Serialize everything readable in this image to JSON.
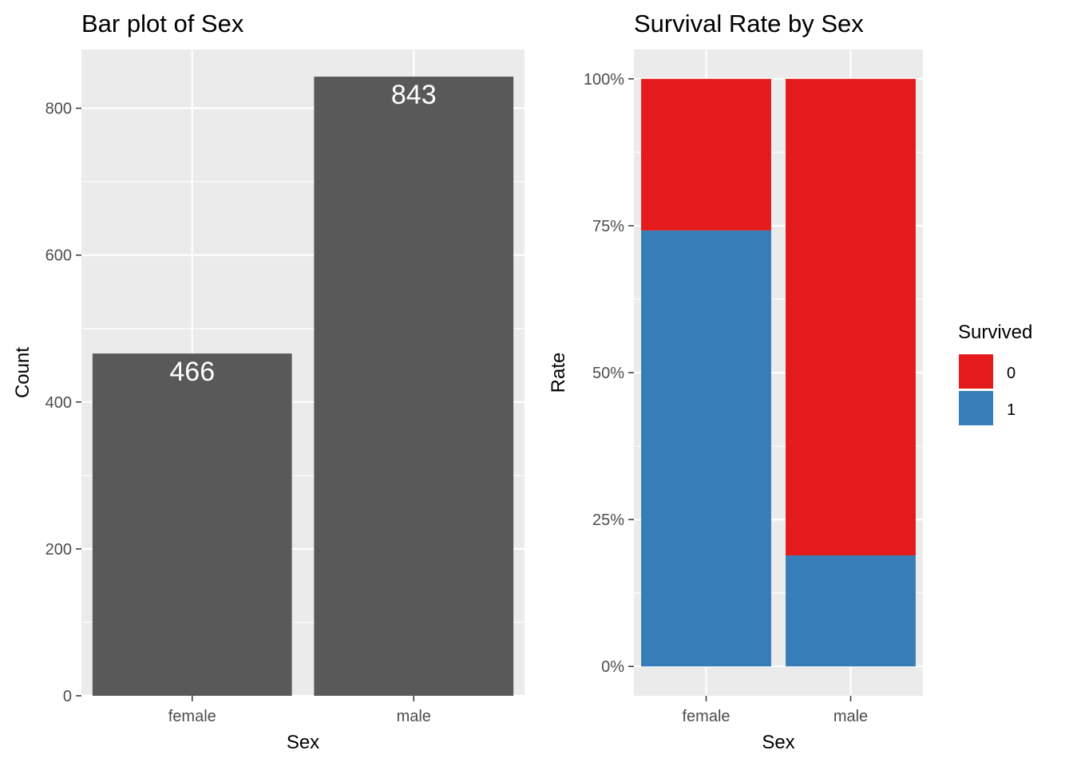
{
  "chart_data": [
    {
      "type": "bar",
      "title": "Bar plot of Sex",
      "xlabel": "Sex",
      "ylabel": "Count",
      "categories": [
        "female",
        "male"
      ],
      "values": [
        466,
        843
      ],
      "data_labels": [
        "466",
        "843"
      ],
      "ylim": [
        0,
        880
      ],
      "yticks": [
        0,
        200,
        400,
        600,
        800
      ],
      "ytick_labels": [
        "0",
        "200",
        "400",
        "600",
        "800"
      ],
      "grid": true,
      "colors": {
        "bar": "#595959",
        "panel": "#ebebeb",
        "grid": "#ffffff",
        "label": "#ffffff"
      }
    },
    {
      "type": "bar",
      "stacked": true,
      "normalized": true,
      "title": "Survival Rate by Sex",
      "xlabel": "Sex",
      "ylabel": "Rate",
      "categories": [
        "female",
        "male"
      ],
      "series": [
        {
          "name": "0",
          "values": [
            0.258,
            0.811
          ],
          "color": "#e41a1c"
        },
        {
          "name": "1",
          "values": [
            0.742,
            0.189
          ],
          "color": "#377eb8"
        }
      ],
      "ylim": [
        -0.05,
        1.05
      ],
      "yticks": [
        0,
        0.25,
        0.5,
        0.75,
        1.0
      ],
      "ytick_labels": [
        "0%",
        "25%",
        "50%",
        "75%",
        "100%"
      ],
      "grid": true,
      "legend": {
        "title": "Survived",
        "position": "right"
      },
      "colors": {
        "panel": "#ebebeb",
        "grid": "#ffffff"
      }
    }
  ]
}
